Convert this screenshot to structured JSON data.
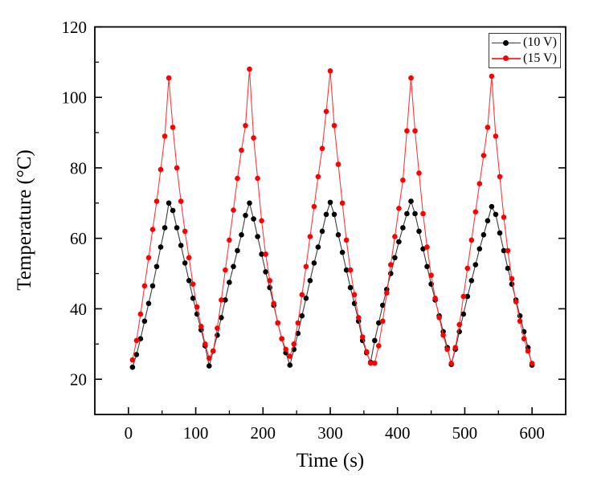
{
  "figure": {
    "background": "#ffffff",
    "axis_color": "#000000",
    "text_color": "#000000"
  },
  "legend": {
    "border_color": "#3c3c3c",
    "entries": [
      {
        "label": "(10 V)"
      },
      {
        "label": "(15 V)"
      }
    ]
  },
  "chart_data": {
    "type": "line",
    "title": "",
    "xlabel": "Time (s)",
    "ylabel": "Temperature (°C)",
    "xlim": [
      -50,
      650
    ],
    "ylim": [
      10,
      120
    ],
    "xticks": [
      0,
      100,
      200,
      300,
      400,
      500,
      600
    ],
    "yticks": [
      20,
      40,
      60,
      80,
      100,
      120
    ],
    "x_minor_ticks": [
      50,
      150,
      250,
      350,
      450,
      550
    ],
    "y_minor_ticks": [
      30,
      50,
      70,
      90,
      110
    ],
    "grid": false,
    "legend_position": "top-right",
    "marker": "filled-circle",
    "x": [
      6,
      12,
      18,
      24,
      30,
      36,
      42,
      48,
      54,
      60,
      66,
      72,
      78,
      84,
      90,
      96,
      102,
      108,
      114,
      120,
      126,
      132,
      138,
      144,
      150,
      156,
      162,
      168,
      174,
      180,
      186,
      192,
      198,
      204,
      210,
      216,
      222,
      228,
      234,
      240,
      246,
      252,
      258,
      264,
      270,
      276,
      282,
      288,
      294,
      300,
      306,
      312,
      318,
      324,
      330,
      336,
      342,
      348,
      354,
      360,
      366,
      372,
      378,
      384,
      390,
      396,
      402,
      408,
      414,
      420,
      426,
      432,
      438,
      444,
      450,
      456,
      462,
      468,
      474,
      480,
      486,
      492,
      498,
      504,
      510,
      516,
      522,
      528,
      534,
      540,
      546,
      552,
      558,
      564,
      570,
      576,
      582,
      588,
      594,
      600
    ],
    "series": [
      {
        "name": "(10 V)",
        "marker_color": "#000000",
        "line_color": "#3d3d3d",
        "values": [
          23.4,
          27.0,
          31.5,
          36.5,
          41.5,
          46.5,
          52.0,
          57.5,
          63.0,
          70.0,
          67.9,
          63.0,
          58.0,
          53.0,
          48.0,
          43.0,
          38.5,
          34.0,
          29.5,
          23.8,
          28.0,
          32.5,
          37.5,
          42.5,
          47.5,
          52.0,
          56.5,
          61.0,
          66.5,
          70.0,
          65.5,
          60.5,
          55.5,
          50.5,
          46.0,
          41.0,
          36.0,
          31.5,
          27.5,
          24.0,
          28.5,
          33.0,
          38.0,
          43.0,
          48.0,
          53.0,
          57.5,
          62.0,
          66.8,
          70.2,
          66.8,
          61.0,
          56.0,
          51.0,
          46.0,
          41.5,
          36.5,
          31.0,
          27.5,
          24.8,
          31.0,
          36.0,
          41.0,
          45.5,
          50.0,
          54.5,
          59.0,
          63.0,
          67.0,
          70.5,
          67.0,
          62.0,
          57.0,
          52.0,
          47.0,
          42.5,
          38.0,
          33.5,
          29.0,
          24.2,
          28.5,
          33.5,
          38.5,
          43.5,
          48.0,
          52.5,
          57.0,
          61.0,
          65.0,
          69.0,
          66.8,
          61.5,
          56.5,
          51.5,
          47.0,
          42.5,
          38.0,
          33.5,
          29.0,
          24.0
        ]
      },
      {
        "name": "(15 V)",
        "marker_color": "#fe0000",
        "line_color": "#ff3838",
        "values": [
          25.5,
          31.0,
          38.5,
          46.5,
          54.5,
          62.5,
          70.5,
          79.5,
          89.0,
          105.5,
          91.5,
          80.0,
          70.5,
          62.0,
          54.5,
          47.0,
          40.5,
          35.0,
          30.0,
          26.0,
          28.0,
          34.5,
          42.5,
          51.0,
          59.5,
          68.0,
          77.0,
          85.0,
          92.0,
          108.0,
          88.5,
          77.0,
          65.0,
          55.5,
          48.0,
          41.5,
          36.0,
          31.5,
          28.5,
          26.5,
          30.0,
          36.0,
          44.0,
          52.0,
          60.5,
          69.0,
          77.5,
          85.5,
          96.0,
          107.5,
          92.0,
          81.0,
          70.0,
          59.5,
          51.0,
          44.0,
          37.5,
          32.0,
          27.8,
          24.6,
          24.6,
          29.5,
          36.5,
          44.5,
          52.5,
          60.5,
          68.5,
          76.5,
          90.5,
          105.5,
          90.5,
          78.5,
          67.0,
          57.5,
          49.5,
          43.0,
          37.5,
          32.5,
          28.5,
          24.5,
          29.0,
          35.5,
          43.5,
          51.5,
          59.5,
          67.5,
          75.5,
          83.5,
          91.5,
          106.0,
          89.0,
          77.5,
          66.0,
          56.5,
          48.5,
          42.0,
          36.5,
          31.5,
          28.0,
          24.5
        ]
      }
    ]
  }
}
